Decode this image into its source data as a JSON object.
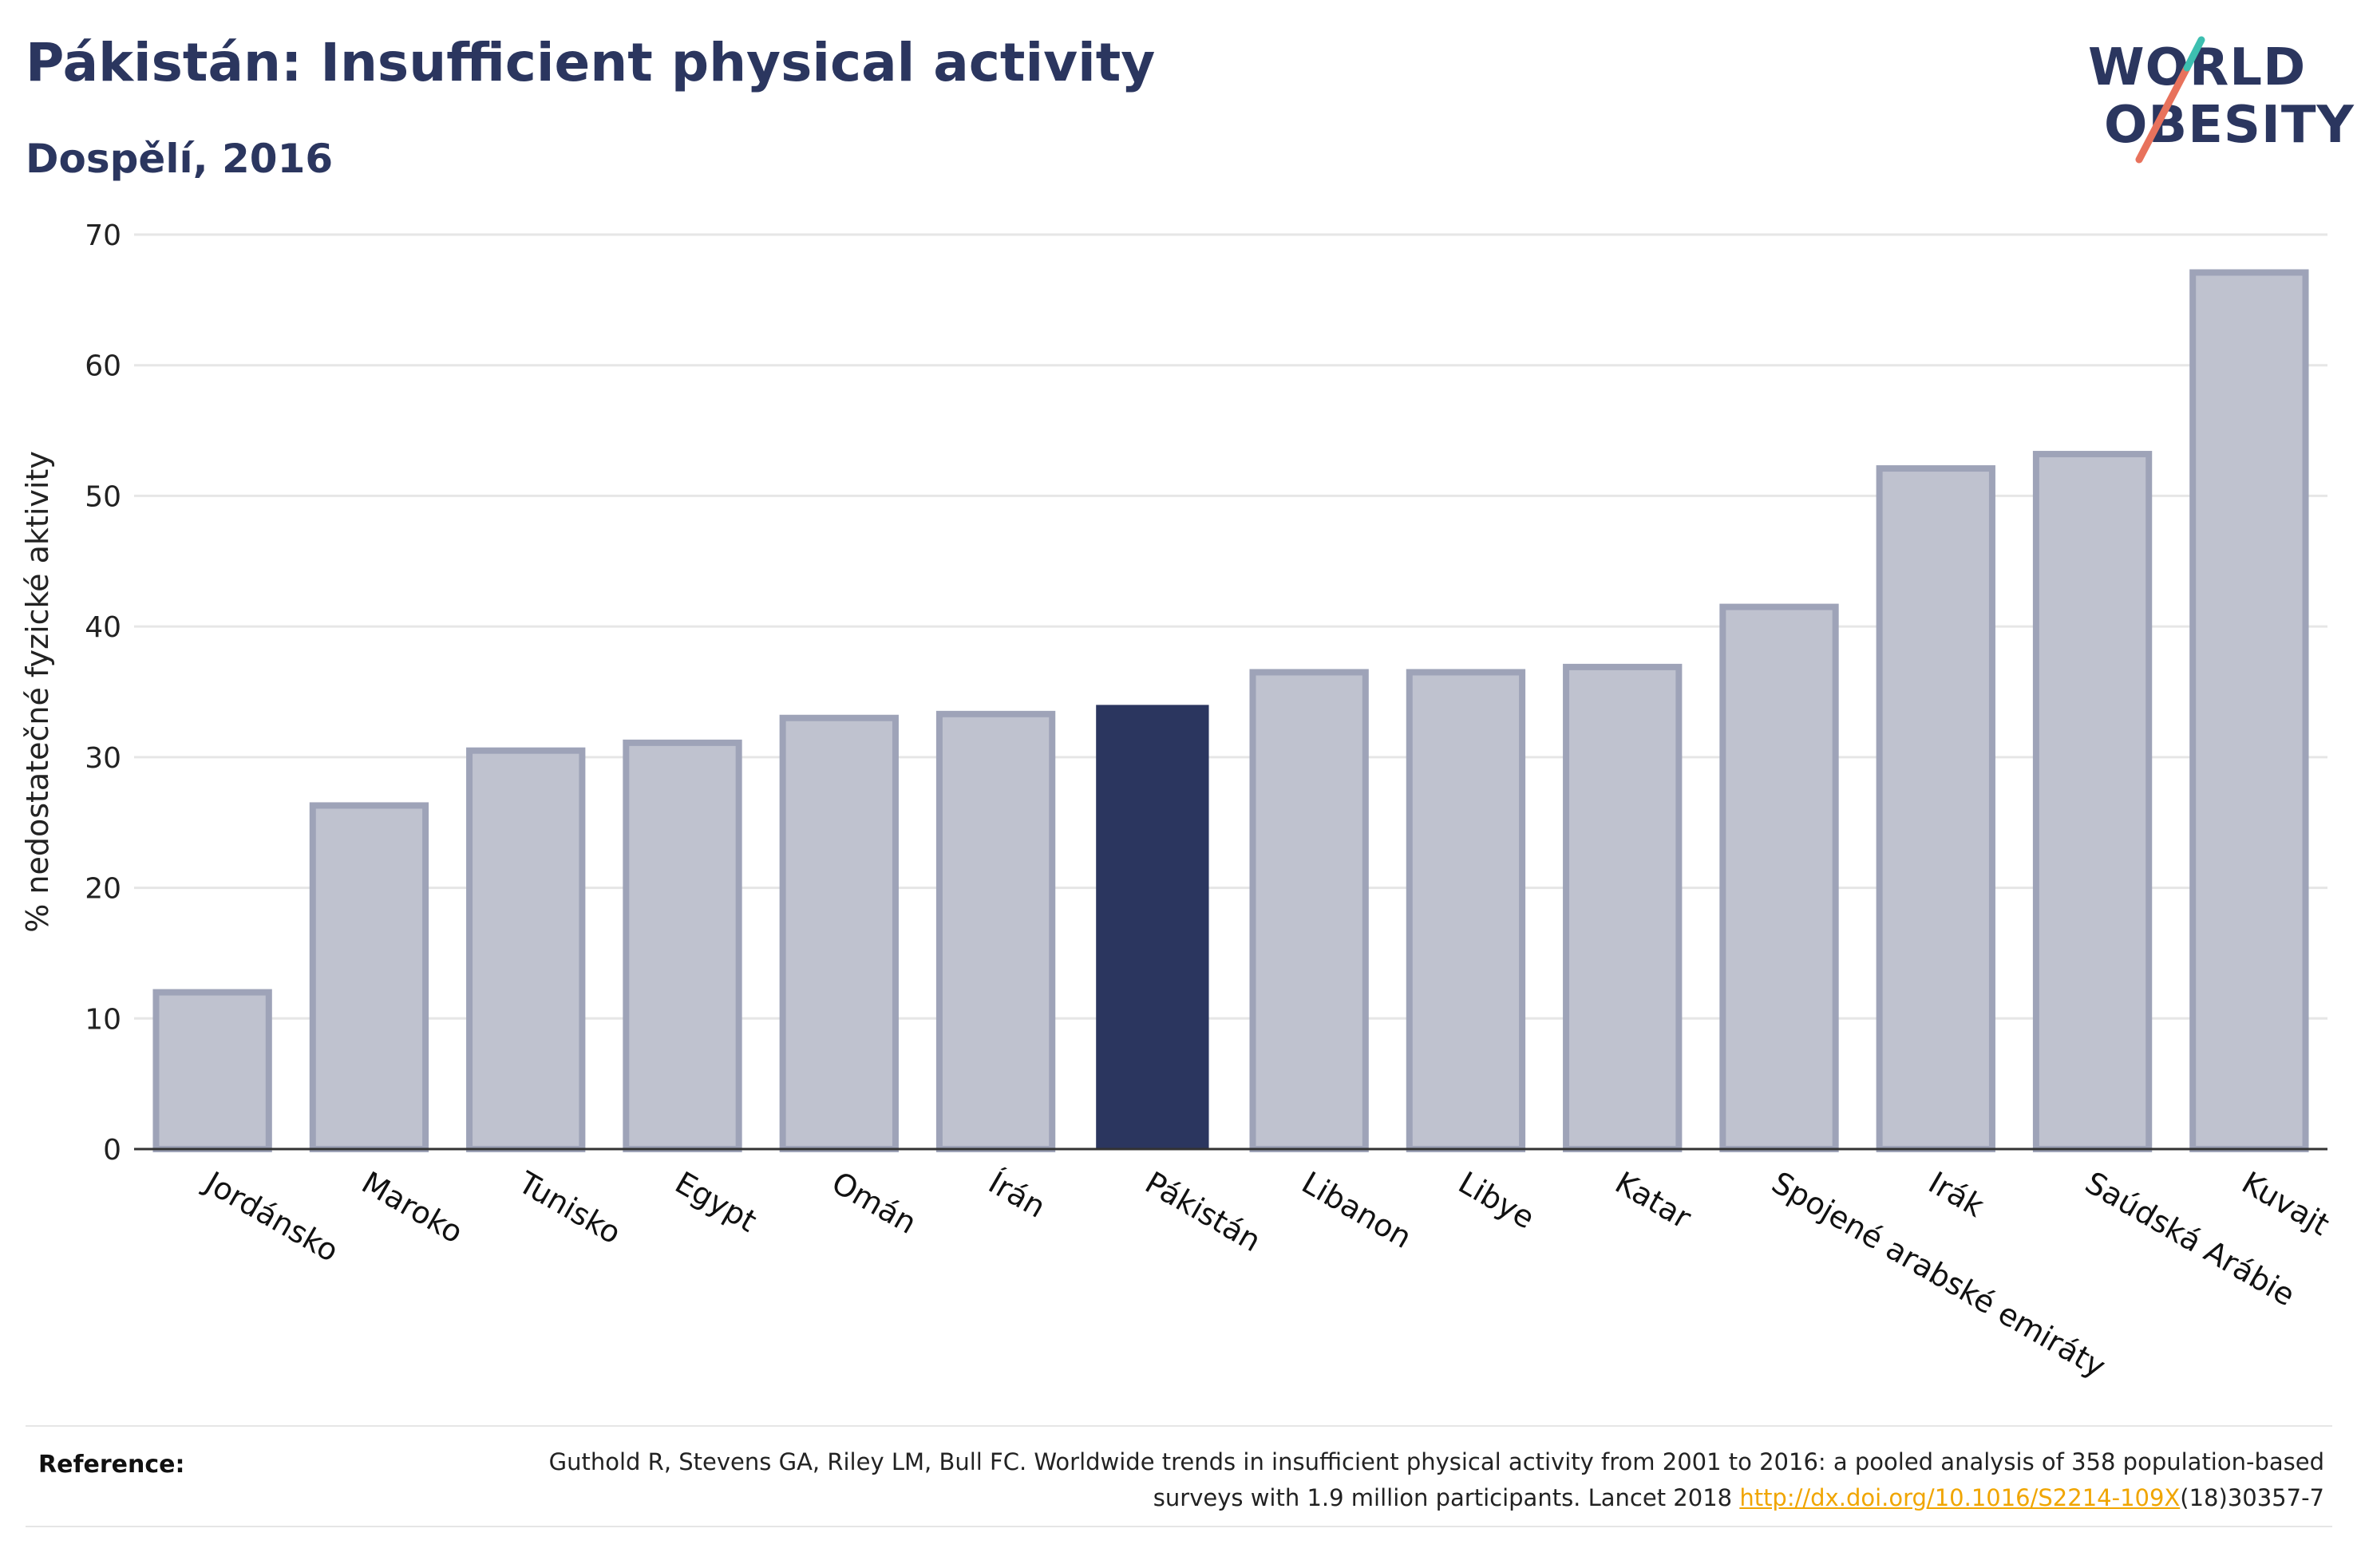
{
  "header": {
    "title": "Pákistán: Insufficient physical activity",
    "subtitle": "Dospělí, 2016"
  },
  "logo": {
    "line1": "WORLD",
    "line2": "OBESITY",
    "brand_color": "#2b365f",
    "slash_colors": [
      "#e8725c",
      "#3dbfb0"
    ]
  },
  "colors": {
    "bar": "#bfc2cf",
    "bar_outline": "#9ea3b8",
    "highlight": "#2b365f",
    "grid": "#e6e6e6",
    "axis": "#333333"
  },
  "chart_data": {
    "type": "bar",
    "title": "Pákistán: Insufficient physical activity",
    "subtitle": "Dospělí, 2016",
    "xlabel": "",
    "ylabel": "% nedostatečné fyzické aktivity",
    "ylim": [
      0,
      70
    ],
    "yticks": [
      0,
      10,
      20,
      30,
      40,
      50,
      60,
      70
    ],
    "grid": true,
    "highlight": "Pákistán",
    "categories": [
      "Jordánsko",
      "Maroko",
      "Tunisko",
      "Egypt",
      "Omán",
      "Írán",
      "Pákistán",
      "Libanon",
      "Libye",
      "Katar",
      "Spojené arabské emiráty",
      "Irák",
      "Saúdská Arábie",
      "Kuvajt"
    ],
    "values": [
      12.0,
      26.3,
      30.5,
      31.1,
      33.0,
      33.3,
      34.0,
      36.5,
      36.5,
      36.9,
      41.5,
      52.1,
      53.2,
      67.1
    ]
  },
  "reference": {
    "label": "Reference:",
    "text_before": "Guthold R, Stevens GA, Riley LM, Bull FC. Worldwide trends in insufficient physical activity from 2001 to 2016: a pooled analysis of 358 population-based surveys with 1.9 million participants. Lancet 2018 ",
    "link": "http://dx.doi.org/10.1016/S2214-109X",
    "text_after": "(18)30357-7"
  }
}
